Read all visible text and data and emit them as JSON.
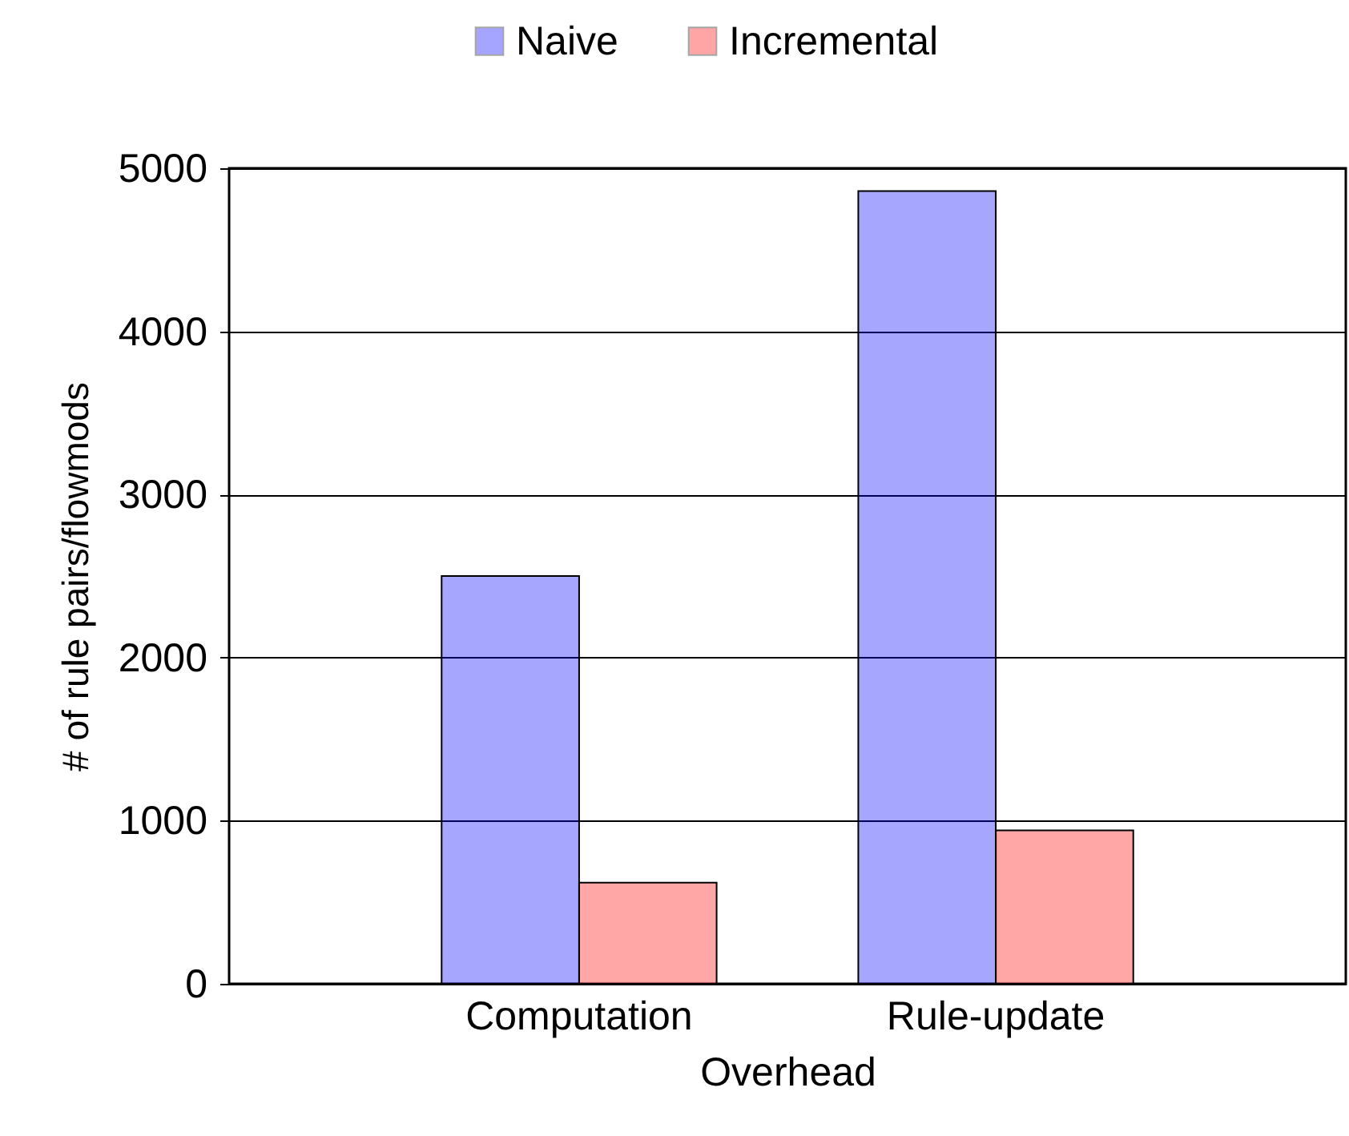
{
  "chart_data": {
    "type": "bar",
    "xlabel": "Overhead",
    "ylabel": "# of rule pairs/flowmods",
    "categories": [
      "Computation",
      "Rule-update"
    ],
    "series": [
      {
        "name": "Naive",
        "color": "#0000ff",
        "values": [
          2500,
          4860
        ]
      },
      {
        "name": "Incremental",
        "color": "#ff0000",
        "values": [
          620,
          940
        ]
      }
    ],
    "ylim": [
      0,
      5000
    ],
    "yticks": [
      0,
      1000,
      2000,
      3000,
      4000,
      5000
    ],
    "grid": "y",
    "legend": "top"
  }
}
